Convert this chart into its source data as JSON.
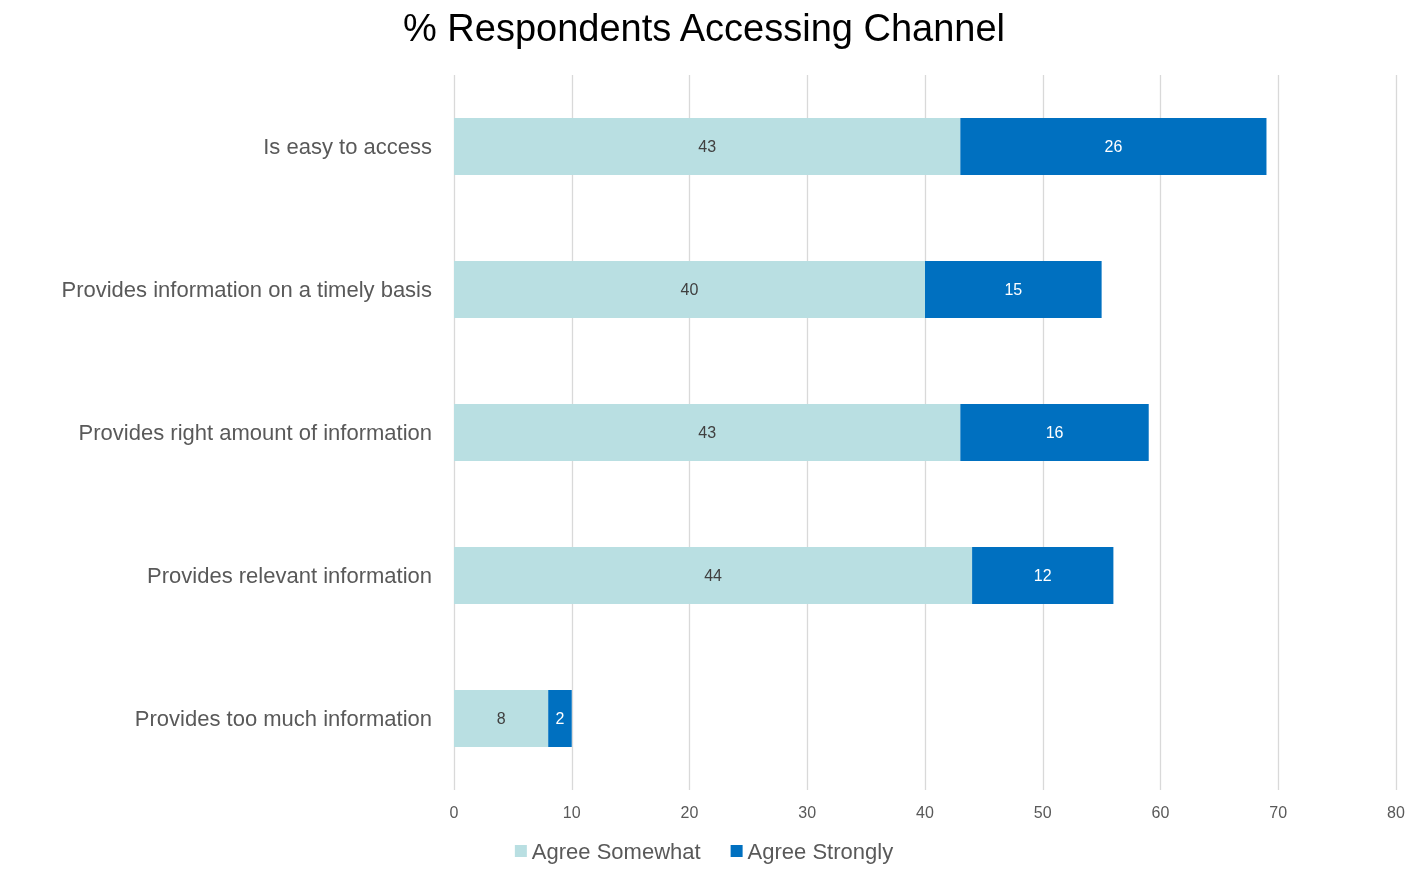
{
  "chart_data": {
    "type": "bar",
    "title": "% Respondents Accessing Channel",
    "orientation": "horizontal",
    "stacked": true,
    "categories": [
      "Is easy to access",
      "Provides information on a timely basis",
      "Provides right amount of information",
      "Provides relevant information",
      "Provides too much information"
    ],
    "series": [
      {
        "name": "Agree Somewhat",
        "color": "#b9dfe2",
        "values": [
          43,
          40,
          43,
          44,
          8
        ]
      },
      {
        "name": "Agree Strongly",
        "color": "#0070c0",
        "values": [
          26,
          15,
          16,
          12,
          2
        ]
      }
    ],
    "xlim": [
      0,
      80
    ],
    "xticks": [
      0,
      10,
      20,
      30,
      40,
      50,
      60,
      70,
      80
    ],
    "grid": "x",
    "legend": "bottom",
    "data_labels": true
  }
}
